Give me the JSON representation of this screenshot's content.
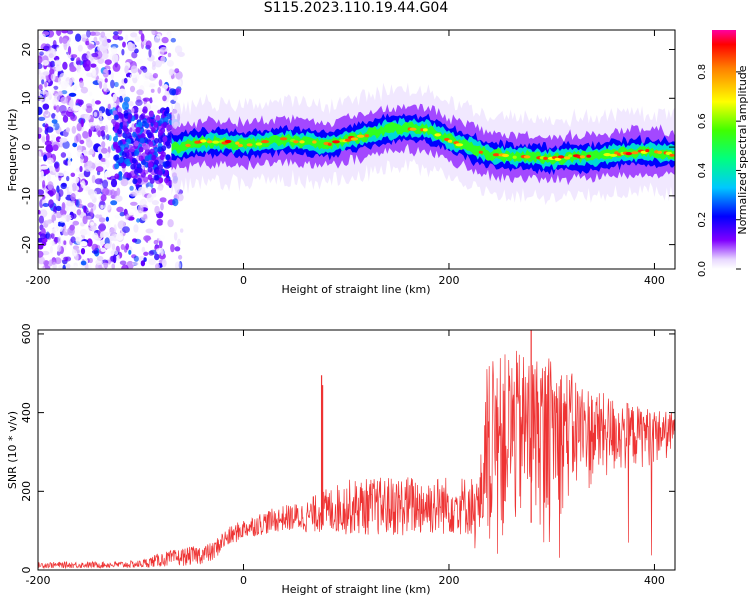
{
  "title": "S115.2023.110.19.44.G04",
  "chart_data": [
    {
      "type": "heatmap",
      "title": "S115.2023.110.19.44.G04",
      "xlabel": "Height of straight line (km)",
      "ylabel": "Frequency (Hz)",
      "xlim": [
        -200,
        420
      ],
      "ylim": [
        -25,
        24
      ],
      "x_ticks": [
        -200,
        0,
        200,
        400
      ],
      "x_tick_labels": [
        "-200",
        "0",
        "200",
        "400"
      ],
      "y_ticks": [
        -20,
        -10,
        0,
        10,
        20
      ],
      "y_tick_labels": [
        "-20",
        "-10",
        "0",
        "10",
        "20"
      ],
      "colorbar": {
        "label": "Normalized spectral amplitude",
        "range": [
          0,
          0.97
        ],
        "ticks": [
          0.0,
          0.2,
          0.4,
          0.6,
          0.8
        ],
        "tick_labels": [
          "0.0",
          "0.2",
          "0.4",
          "0.6",
          "0.8"
        ]
      },
      "ridge_frequency": {
        "x": [
          -70,
          -60,
          -40,
          -20,
          0,
          20,
          40,
          60,
          80,
          100,
          120,
          140,
          160,
          180,
          200,
          220,
          240,
          260,
          280,
          300,
          320,
          340,
          360,
          380,
          400,
          420
        ],
        "y": [
          0,
          0,
          1,
          1,
          0.5,
          1,
          1.5,
          1,
          0.5,
          1.5,
          2.5,
          3.5,
          4,
          3.5,
          1.5,
          0,
          -1.5,
          -2,
          -2,
          -2.5,
          -2,
          -2,
          -1.5,
          -1,
          -1,
          -1.5
        ]
      },
      "grid": false
    },
    {
      "type": "line",
      "xlabel": "Height of straight line (km)",
      "ylabel": "SNR (10 * v/v)",
      "xlim": [
        -200,
        420
      ],
      "ylim": [
        0,
        610
      ],
      "x_ticks": [
        -200,
        0,
        200,
        400
      ],
      "x_tick_labels": [
        "-200",
        "0",
        "200",
        "400"
      ],
      "y_ticks": [
        0,
        200,
        400,
        600
      ],
      "y_tick_labels": [
        "0",
        "200",
        "400",
        "600"
      ],
      "series": [
        {
          "color": "#ee3333",
          "envelope": {
            "x": [
              -200,
              -120,
              -100,
              -80,
              -60,
              -40,
              -30,
              -20,
              0,
              20,
              40,
              60,
              75,
              100,
              150,
              200,
              230,
              235,
              260,
              300,
              340,
              380,
              420
            ],
            "low": [
              5,
              5,
              5,
              8,
              10,
              15,
              20,
              50,
              80,
              90,
              100,
              95,
              95,
              90,
              85,
              90,
              85,
              60,
              60,
              120,
              200,
              250,
              280
            ],
            "high": [
              20,
              22,
              25,
              45,
              55,
              65,
              70,
              100,
              130,
              150,
              165,
              175,
              200,
              230,
              240,
              240,
              240,
              520,
              560,
              540,
              460,
              420,
              400
            ]
          },
          "spikes": [
            {
              "x": 76,
              "y": 495
            },
            {
              "x": 77,
              "y": 470
            },
            {
              "x": 280,
              "y": 612
            }
          ]
        }
      ],
      "grid": false
    }
  ]
}
